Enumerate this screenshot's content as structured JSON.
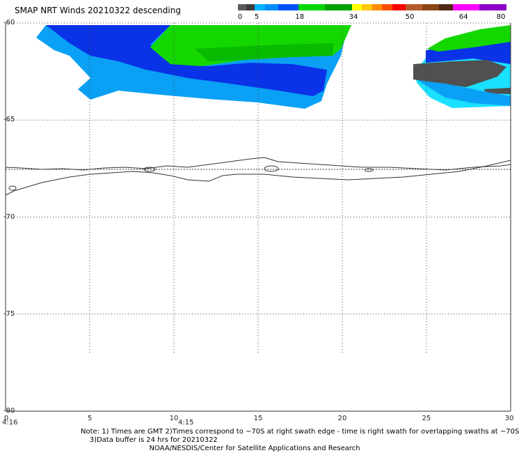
{
  "header": {
    "title": "SMAP NRT Winds  20210322 descending"
  },
  "colorbar": {
    "tick_labels": [
      "0",
      "5",
      "18",
      "34",
      "50",
      "64",
      "80"
    ],
    "tick_values": [
      0,
      5,
      18,
      34,
      50,
      64,
      80
    ],
    "segments": [
      {
        "from": 0,
        "to": 5,
        "color": "#5a5a5a"
      },
      {
        "from": 5,
        "to": 18,
        "color": "#1e8cff"
      },
      {
        "from": 18,
        "to": 34,
        "color": "#00b400"
      },
      {
        "from": 34,
        "to": 50,
        "color": "#ff6a00"
      },
      {
        "from": 50,
        "to": 64,
        "color": "#8b4513"
      },
      {
        "from": 64,
        "to": 80,
        "color": "#c800c8"
      }
    ]
  },
  "map": {
    "lat_labels": [
      "-60",
      "-65",
      "-70",
      "-75",
      "-80"
    ],
    "lon_labels": [
      "0",
      "5",
      "10",
      "15",
      "20",
      "25",
      "30"
    ],
    "time_labels": [
      "4:16",
      "4:15"
    ],
    "lat_range": [
      -80,
      -60
    ],
    "lon_range": [
      0,
      30
    ],
    "colors": {
      "blue": "#0a32e6",
      "light_blue": "#0aa0f5",
      "cyan": "#19e1ff",
      "green": "#14d700",
      "gray": "#505050",
      "coast": "#333333"
    }
  },
  "notes": {
    "line1": "Note: 1) Times are GMT 2)Times correspond to ~70S at right swath edge - time is right swath for overlapping swaths at ~70S",
    "line2": "3)Data buffer is 24 hrs for 20210322",
    "line3": "NOAA/NESDIS/Center for Satellite Applications and Research"
  }
}
